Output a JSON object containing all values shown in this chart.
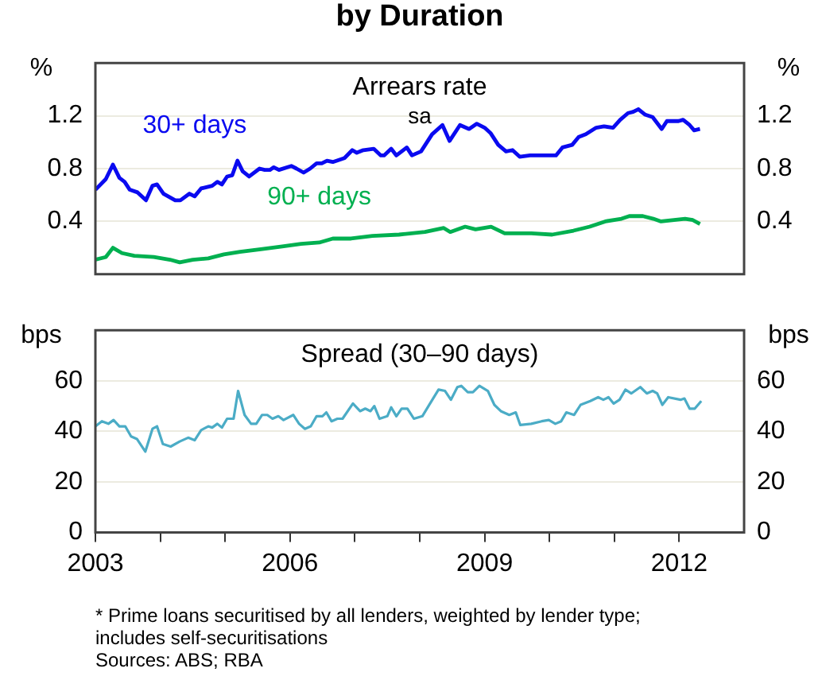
{
  "chart_data": [
    {
      "type": "line",
      "title": "by Duration",
      "subtitle": "Arrears rate",
      "annotations": [
        "sa"
      ],
      "ylabel": "%",
      "y2label": "%",
      "xlim": [
        2003,
        2013
      ],
      "ylim": [
        0,
        1.6
      ],
      "yticks": [
        0.4,
        0.8,
        1.2
      ],
      "y2lim": [
        0,
        1.6
      ],
      "y2ticks": [
        0.4,
        0.8,
        1.2
      ],
      "grid": "y",
      "tick_labels": "y",
      "series": [
        {
          "name": "30+ days",
          "color": "#0a0af0",
          "x": [
            2003.0,
            2003.16,
            2003.27,
            2003.37,
            2003.45,
            2003.53,
            2003.65,
            2003.78,
            2003.88,
            2003.95,
            2004.05,
            2004.23,
            2004.31,
            2004.45,
            2004.53,
            2004.63,
            2004.8,
            2004.88,
            2004.95,
            2005.03,
            2005.11,
            2005.19,
            2005.27,
            2005.37,
            2005.53,
            2005.61,
            2005.69,
            2005.75,
            2005.83,
            2006.02,
            2006.1,
            2006.21,
            2006.31,
            2006.41,
            2006.49,
            2006.57,
            2006.66,
            2006.84,
            2006.96,
            2007.03,
            2007.13,
            2007.29,
            2007.4,
            2007.45,
            2007.56,
            2007.64,
            2007.8,
            2007.88,
            2008.02,
            2008.19,
            2008.35,
            2008.46,
            2008.62,
            2008.76,
            2008.88,
            2009.0,
            2009.09,
            2009.21,
            2009.33,
            2009.43,
            2009.54,
            2009.7,
            2009.87,
            2010.03,
            2010.1,
            2010.2,
            2010.35,
            2010.45,
            2010.56,
            2010.72,
            2010.84,
            2010.98,
            2011.09,
            2011.21,
            2011.29,
            2011.37,
            2011.47,
            2011.59,
            2011.73,
            2011.81,
            2011.99,
            2012.06,
            2012.16,
            2012.23,
            2012.32
          ],
          "values": [
            0.64,
            0.72,
            0.83,
            0.73,
            0.7,
            0.64,
            0.62,
            0.56,
            0.67,
            0.68,
            0.61,
            0.56,
            0.56,
            0.61,
            0.59,
            0.65,
            0.67,
            0.7,
            0.68,
            0.74,
            0.75,
            0.86,
            0.78,
            0.74,
            0.8,
            0.79,
            0.79,
            0.81,
            0.79,
            0.82,
            0.8,
            0.77,
            0.8,
            0.84,
            0.84,
            0.86,
            0.85,
            0.88,
            0.94,
            0.92,
            0.94,
            0.95,
            0.9,
            0.9,
            0.95,
            0.9,
            0.96,
            0.9,
            0.93,
            1.06,
            1.13,
            1.01,
            1.13,
            1.1,
            1.14,
            1.11,
            1.07,
            0.98,
            0.93,
            0.94,
            0.89,
            0.9,
            0.9,
            0.9,
            0.9,
            0.96,
            0.98,
            1.04,
            1.06,
            1.11,
            1.12,
            1.11,
            1.17,
            1.22,
            1.23,
            1.25,
            1.21,
            1.19,
            1.1,
            1.16,
            1.16,
            1.17,
            1.13,
            1.09,
            1.1
          ]
        },
        {
          "name": "90+ days",
          "color": "#00b050",
          "x": [
            2003.0,
            2003.16,
            2003.27,
            2003.41,
            2003.6,
            2003.9,
            2004.15,
            2004.3,
            2004.5,
            2004.74,
            2004.98,
            2005.23,
            2005.55,
            2005.88,
            2006.17,
            2006.45,
            2006.66,
            2006.94,
            2007.27,
            2007.68,
            2008.08,
            2008.37,
            2008.47,
            2008.7,
            2008.86,
            2009.1,
            2009.31,
            2009.72,
            2010.04,
            2010.37,
            2010.62,
            2010.86,
            2011.11,
            2011.23,
            2011.44,
            2011.6,
            2011.72,
            2012.09,
            2012.21,
            2012.32
          ],
          "values": [
            0.11,
            0.13,
            0.2,
            0.16,
            0.14,
            0.13,
            0.11,
            0.09,
            0.11,
            0.12,
            0.15,
            0.17,
            0.19,
            0.21,
            0.23,
            0.24,
            0.27,
            0.27,
            0.29,
            0.3,
            0.32,
            0.35,
            0.32,
            0.36,
            0.34,
            0.36,
            0.31,
            0.31,
            0.3,
            0.33,
            0.36,
            0.4,
            0.42,
            0.44,
            0.44,
            0.42,
            0.4,
            0.42,
            0.41,
            0.38
          ]
        }
      ]
    },
    {
      "type": "line",
      "title": "Spread (30–90 days)",
      "ylabel": "bps",
      "y2label": "bps",
      "xlim": [
        2003,
        2013
      ],
      "xticks": [
        2003,
        {
          "value": 2004,
          "label": null
        },
        {
          "value": 2005,
          "label": null
        },
        2006,
        {
          "value": 2007,
          "label": null
        },
        {
          "value": 2008,
          "label": null
        },
        2009,
        {
          "value": 2010,
          "label": null
        },
        {
          "value": 2011,
          "label": null
        },
        2012
      ],
      "ylim": [
        0,
        80
      ],
      "yticks": [
        0,
        20,
        40,
        60
      ],
      "y2lim": [
        0,
        80
      ],
      "y2ticks": [
        0,
        20,
        40,
        60
      ],
      "grid": "y",
      "annotations": [
        "* Prime loans securitised by all lenders, weighted by lender type; includes self-securitisations",
        "Sources: ABS; RBA"
      ],
      "series": [
        {
          "color": "#4bacc6",
          "x": [
            2003.0,
            2003.1,
            2003.2,
            2003.28,
            2003.37,
            2003.46,
            2003.55,
            2003.64,
            2003.77,
            2003.88,
            2003.95,
            2004.04,
            2004.16,
            2004.3,
            2004.43,
            2004.53,
            2004.63,
            2004.74,
            2004.8,
            2004.88,
            2004.95,
            2005.03,
            2005.13,
            2005.2,
            2005.3,
            2005.4,
            2005.48,
            2005.57,
            2005.65,
            2005.73,
            2005.82,
            2005.9,
            2006.05,
            2006.14,
            2006.23,
            2006.32,
            2006.41,
            2006.5,
            2006.56,
            2006.64,
            2006.73,
            2006.81,
            2006.97,
            2007.08,
            2007.16,
            2007.24,
            2007.3,
            2007.38,
            2007.5,
            2007.56,
            2007.64,
            2007.72,
            2007.81,
            2007.91,
            2008.04,
            2008.17,
            2008.29,
            2008.39,
            2008.48,
            2008.58,
            2008.64,
            2008.74,
            2008.82,
            2008.92,
            2009.05,
            2009.15,
            2009.25,
            2009.38,
            2009.48,
            2009.55,
            2009.72,
            2009.88,
            2009.99,
            2010.09,
            2010.18,
            2010.26,
            2010.38,
            2010.48,
            2010.63,
            2010.75,
            2010.83,
            2010.91,
            2010.99,
            2011.08,
            2011.17,
            2011.26,
            2011.4,
            2011.5,
            2011.59,
            2011.66,
            2011.74,
            2011.83,
            2012.02,
            2012.08,
            2012.16,
            2012.24,
            2012.34
          ],
          "values": [
            42,
            44,
            43,
            44.5,
            42,
            42,
            38,
            37,
            32,
            41,
            42,
            35,
            34,
            36,
            37.5,
            36.5,
            40.5,
            42,
            41.5,
            43,
            41.5,
            45,
            45,
            56,
            46.5,
            43,
            43,
            46.5,
            46.5,
            45,
            46,
            44.5,
            46.5,
            43,
            41,
            42,
            46,
            46,
            47.5,
            44,
            45,
            45,
            51,
            48,
            49,
            48,
            50,
            45,
            46,
            49.5,
            46,
            49,
            49,
            45,
            46,
            51.5,
            56.5,
            56,
            52.5,
            57.5,
            58,
            55.5,
            55.5,
            58,
            56,
            50.5,
            48,
            46.5,
            47.5,
            42.5,
            43,
            44,
            44.5,
            43,
            44,
            47.5,
            46.5,
            50.5,
            52,
            53.5,
            52.5,
            53.5,
            51,
            52.5,
            56.5,
            55,
            57.5,
            55,
            56,
            55,
            50.5,
            53.5,
            52.5,
            53,
            49,
            49,
            52
          ]
        }
      ]
    }
  ]
}
